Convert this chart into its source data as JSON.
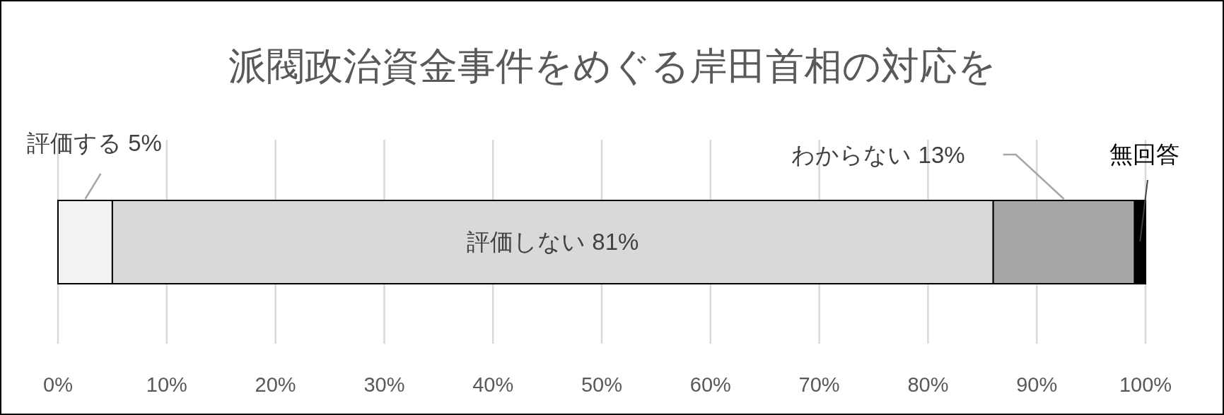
{
  "chart_data": {
    "type": "bar",
    "orientation": "horizontal",
    "stacked": true,
    "title": "派閥政治資金事件をめぐる岸田首相の対応を",
    "categories": [
      null
    ],
    "series": [
      {
        "name": "評価する",
        "color": "#f2f2f2",
        "values": [
          5
        ],
        "value_labels": [
          "5%"
        ]
      },
      {
        "name": "評価しない",
        "color": "#d9d9d9",
        "values": [
          81
        ],
        "value_labels": [
          "81%"
        ]
      },
      {
        "name": "わからない",
        "color": "#a6a6a6",
        "values": [
          13
        ],
        "value_labels": [
          "13%"
        ]
      },
      {
        "name": "無回答",
        "color": "#000000",
        "values": [
          1
        ],
        "value_labels": [
          null
        ]
      }
    ],
    "xlim": [
      0,
      100
    ],
    "xticks": [
      {
        "value": 0,
        "label": "0%"
      },
      {
        "value": 10,
        "label": "10%"
      },
      {
        "value": 20,
        "label": "20%"
      },
      {
        "value": 30,
        "label": "30%"
      },
      {
        "value": 40,
        "label": "40%"
      },
      {
        "value": 50,
        "label": "50%"
      },
      {
        "value": 60,
        "label": "60%"
      },
      {
        "value": 70,
        "label": "70%"
      },
      {
        "value": 80,
        "label": "80%"
      },
      {
        "value": 90,
        "label": "90%"
      },
      {
        "value": 100,
        "label": "100%"
      }
    ],
    "grid": "x"
  }
}
